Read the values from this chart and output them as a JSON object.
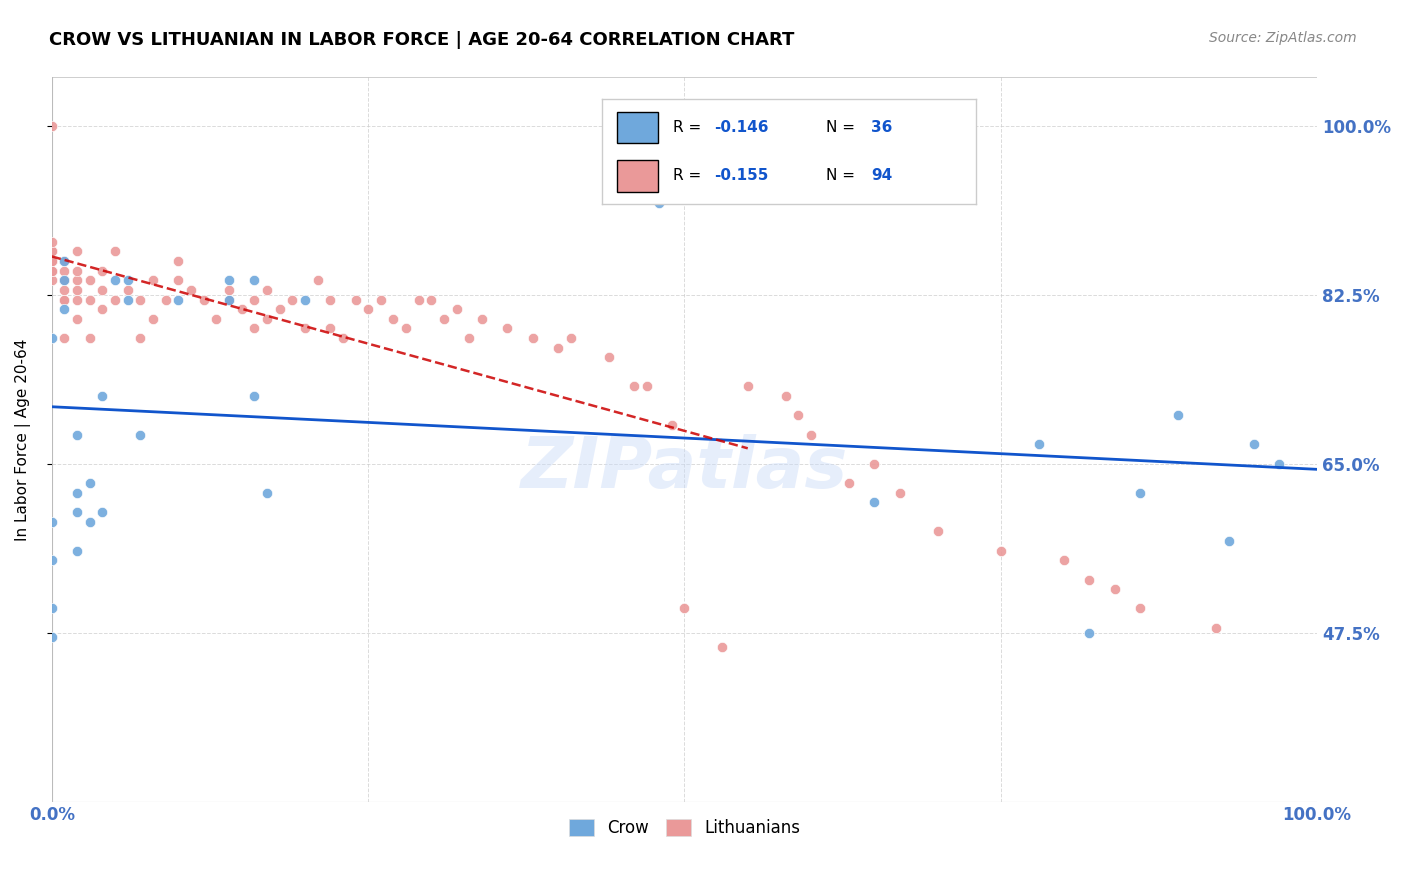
{
  "title": "CROW VS LITHUANIAN IN LABOR FORCE | AGE 20-64 CORRELATION CHART",
  "source": "Source: ZipAtlas.com",
  "ylabel": "In Labor Force | Age 20-64",
  "xlim": [
    0.0,
    1.0
  ],
  "ylim": [
    0.3,
    1.05
  ],
  "yticks": [
    0.475,
    0.65,
    0.825,
    1.0
  ],
  "ytick_labels": [
    "47.5%",
    "65.0%",
    "82.5%",
    "100.0%"
  ],
  "watermark": "ZIPatlas",
  "crow_color": "#6fa8dc",
  "lith_color": "#ea9999",
  "crow_line_color": "#1155cc",
  "lith_line_color": "#cc0000",
  "crow_R": "-0.146",
  "crow_N": "36",
  "lith_R": "-0.155",
  "lith_N": "94",
  "crow_scatter_x": [
    0.0,
    0.0,
    0.0,
    0.0,
    0.0,
    0.01,
    0.01,
    0.01,
    0.02,
    0.02,
    0.02,
    0.02,
    0.03,
    0.03,
    0.04,
    0.04,
    0.05,
    0.06,
    0.06,
    0.07,
    0.1,
    0.14,
    0.14,
    0.16,
    0.16,
    0.17,
    0.2,
    0.48,
    0.65,
    0.78,
    0.82,
    0.86,
    0.89,
    0.93,
    0.95,
    0.97
  ],
  "crow_scatter_y": [
    0.47,
    0.5,
    0.55,
    0.59,
    0.78,
    0.81,
    0.84,
    0.86,
    0.56,
    0.6,
    0.62,
    0.68,
    0.59,
    0.63,
    0.6,
    0.72,
    0.84,
    0.82,
    0.84,
    0.68,
    0.82,
    0.82,
    0.84,
    0.72,
    0.84,
    0.62,
    0.82,
    0.92,
    0.61,
    0.67,
    0.475,
    0.62,
    0.7,
    0.57,
    0.67,
    0.65
  ],
  "lith_scatter_x": [
    0.0,
    0.0,
    0.0,
    0.0,
    0.0,
    0.0,
    0.0,
    0.0,
    0.0,
    0.0,
    0.0,
    0.0,
    0.01,
    0.01,
    0.01,
    0.01,
    0.01,
    0.01,
    0.01,
    0.01,
    0.02,
    0.02,
    0.02,
    0.02,
    0.02,
    0.02,
    0.03,
    0.03,
    0.03,
    0.04,
    0.04,
    0.04,
    0.05,
    0.05,
    0.06,
    0.07,
    0.07,
    0.08,
    0.08,
    0.09,
    0.1,
    0.1,
    0.11,
    0.12,
    0.13,
    0.14,
    0.14,
    0.15,
    0.16,
    0.16,
    0.17,
    0.17,
    0.18,
    0.19,
    0.2,
    0.21,
    0.22,
    0.22,
    0.23,
    0.24,
    0.25,
    0.26,
    0.27,
    0.28,
    0.29,
    0.3,
    0.31,
    0.32,
    0.33,
    0.34,
    0.36,
    0.38,
    0.4,
    0.41,
    0.44,
    0.46,
    0.47,
    0.49,
    0.5,
    0.53,
    0.55,
    0.58,
    0.59,
    0.6,
    0.63,
    0.65,
    0.67,
    0.7,
    0.75,
    0.8,
    0.82,
    0.84,
    0.86,
    0.92
  ],
  "lith_scatter_y": [
    0.84,
    0.85,
    0.85,
    0.86,
    0.86,
    0.86,
    0.87,
    0.87,
    0.87,
    0.87,
    0.88,
    1.0,
    0.78,
    0.82,
    0.82,
    0.83,
    0.84,
    0.84,
    0.85,
    0.86,
    0.8,
    0.82,
    0.83,
    0.84,
    0.85,
    0.87,
    0.78,
    0.82,
    0.84,
    0.81,
    0.83,
    0.85,
    0.82,
    0.87,
    0.83,
    0.78,
    0.82,
    0.8,
    0.84,
    0.82,
    0.84,
    0.86,
    0.83,
    0.82,
    0.8,
    0.83,
    0.82,
    0.81,
    0.79,
    0.82,
    0.8,
    0.83,
    0.81,
    0.82,
    0.79,
    0.84,
    0.79,
    0.82,
    0.78,
    0.82,
    0.81,
    0.82,
    0.8,
    0.79,
    0.82,
    0.82,
    0.8,
    0.81,
    0.78,
    0.8,
    0.79,
    0.78,
    0.77,
    0.78,
    0.76,
    0.73,
    0.73,
    0.69,
    0.5,
    0.46,
    0.73,
    0.72,
    0.7,
    0.68,
    0.63,
    0.65,
    0.62,
    0.58,
    0.56,
    0.55,
    0.53,
    0.52,
    0.5,
    0.48
  ],
  "background_color": "#ffffff",
  "grid_color": "#cccccc",
  "title_color": "#000000",
  "axis_label_color": "#000000",
  "tick_color_right": "#4472c4",
  "tick_color_bottom": "#4472c4"
}
